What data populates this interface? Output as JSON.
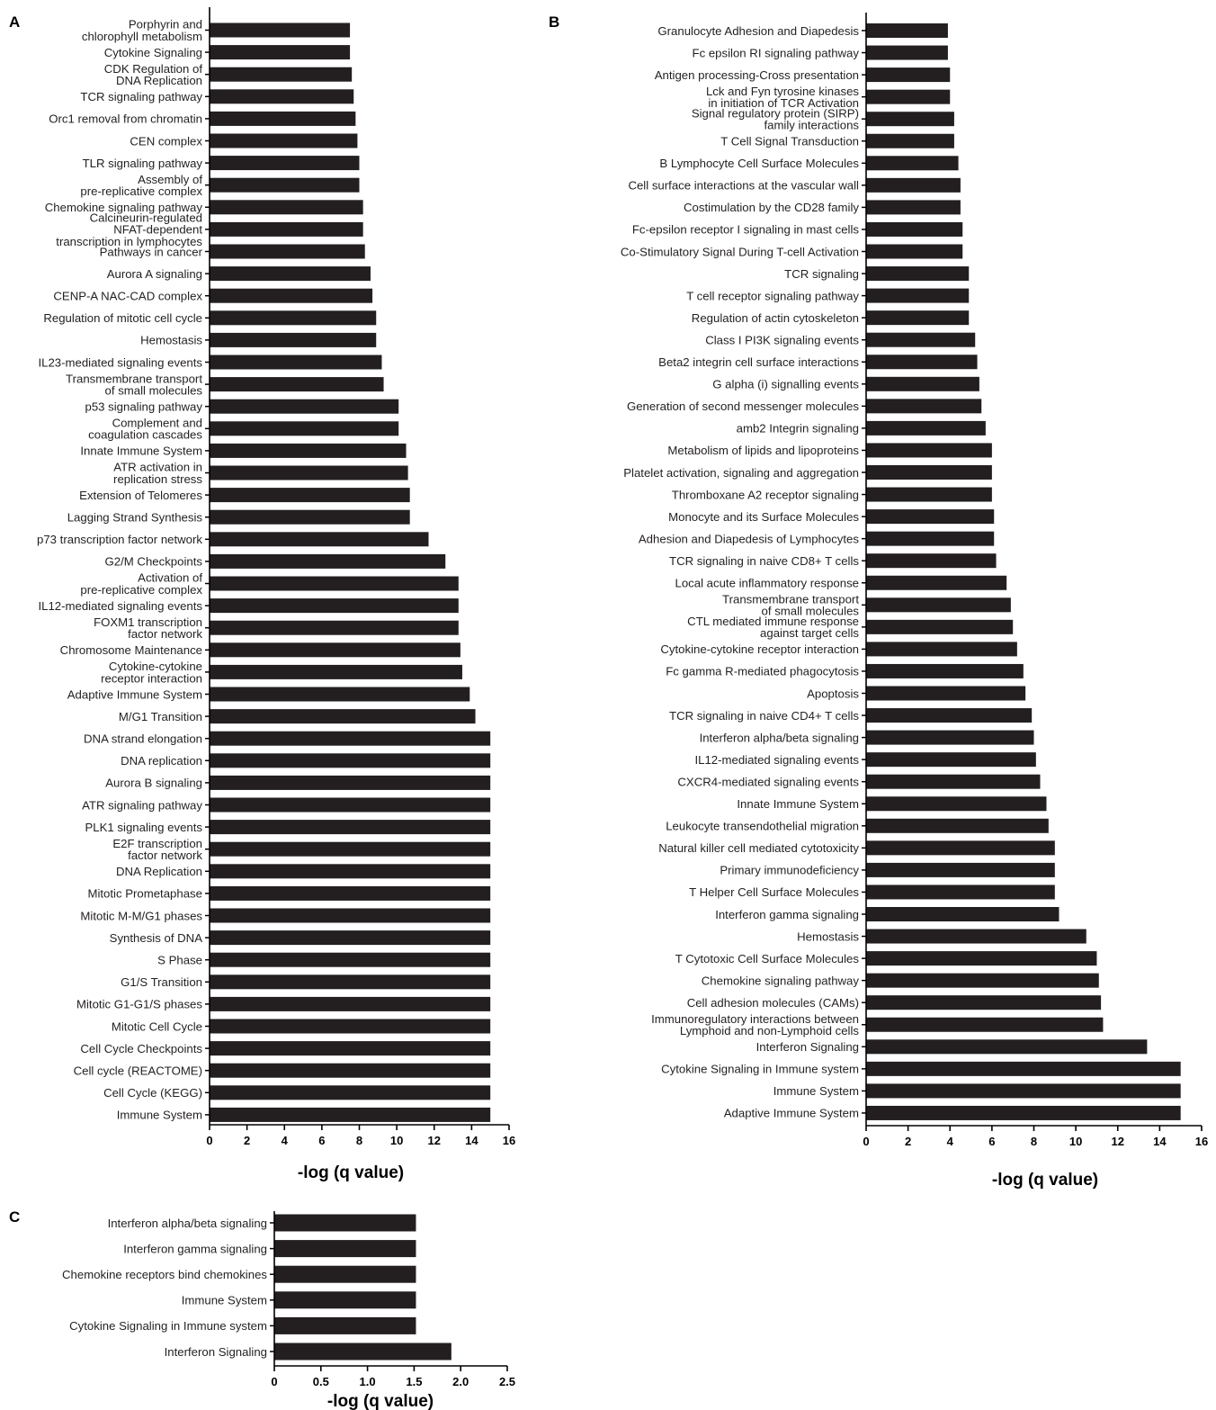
{
  "chart_data": [
    {
      "panel_label": "A",
      "type": "bar",
      "orientation": "horizontal",
      "xlabel": "-log (q value)",
      "xlim": [
        0,
        16
      ],
      "xticks": [
        "0",
        "2",
        "4",
        "6",
        "8",
        "10",
        "12",
        "14",
        "16"
      ],
      "bar_color": "#231f20",
      "categories": [
        "Porphyrin and\nchlorophyll metabolism",
        "Cytokine Signaling",
        "CDK Regulation of\nDNA Replication",
        "TCR  signaling pathway",
        "Orc1 removal from chromatin",
        "CEN complex",
        "TLR signaling pathway",
        "Assembly of\npre-replicative complex",
        "Chemokine signaling pathway",
        "Calcineurin-regulated\nNFAT-dependent\ntranscription in lymphocytes",
        "Pathways in cancer",
        "Aurora A signaling",
        "CENP-A NAC-CAD complex",
        "Regulation of mitotic cell cycle",
        "Hemostasis",
        "IL23-mediated signaling events",
        "Transmembrane transport\nof small molecules",
        "p53 signaling pathway",
        "Complement and\ncoagulation cascades",
        "Innate Immune System",
        "ATR activation in\nreplication stress",
        "Extension of Telomeres",
        "Lagging Strand Synthesis",
        "p73 transcription factor network",
        "G2/M Checkpoints",
        "Activation of\npre-replicative complex",
        "IL12-mediated signaling events",
        "FOXM1 transcription\nfactor network",
        "Chromosome Maintenance",
        "Cytokine-cytokine\nreceptor interaction",
        "Adaptive Immune System",
        "M/G1 Transition",
        "DNA strand elongation",
        "DNA replication",
        "Aurora B signaling",
        "ATR signaling pathway",
        "PLK1 signaling events",
        "E2F transcription\nfactor network",
        "DNA Replication",
        "Mitotic Prometaphase",
        "Mitotic M-M/G1 phases",
        "Synthesis of DNA",
        "S Phase",
        "G1/S Transition",
        "Mitotic G1-G1/S phases",
        "Mitotic Cell Cycle",
        "Cell Cycle Checkpoints",
        "Cell cycle (REACTOME)",
        "Cell Cycle (KEGG)",
        "Immune System"
      ],
      "values": [
        7.5,
        7.5,
        7.6,
        7.7,
        7.8,
        7.9,
        8.0,
        8.0,
        8.2,
        8.2,
        8.3,
        8.6,
        8.7,
        8.9,
        8.9,
        9.2,
        9.3,
        10.1,
        10.1,
        10.5,
        10.6,
        10.7,
        10.7,
        11.7,
        12.6,
        13.3,
        13.3,
        13.3,
        13.4,
        13.5,
        13.9,
        14.2,
        15.0,
        15.0,
        15.0,
        15.0,
        15.0,
        15.0,
        15.0,
        15.0,
        15.0,
        15.0,
        15.0,
        15.0,
        15.0,
        15.0,
        15.0,
        15.0,
        15.0,
        15.0
      ]
    },
    {
      "panel_label": "B",
      "type": "bar",
      "orientation": "horizontal",
      "xlabel": "-log (q value)",
      "xlim": [
        0,
        16
      ],
      "xticks": [
        "0",
        "2",
        "4",
        "6",
        "8",
        "10",
        "12",
        "14",
        "16"
      ],
      "bar_color": "#231f20",
      "categories": [
        "Granulocyte Adhesion and Diapedesis",
        "Fc epsilon RI signaling pathway",
        "Antigen processing-Cross presentation",
        "Lck and Fyn tyrosine kinases\nin initiation of TCR Activation",
        "Signal regulatory protein (SIRP)\nfamily interactions",
        "T Cell Signal Transduction",
        "B Lymphocyte Cell Surface Molecules",
        "Cell surface interactions at the vascular wall",
        "Costimulation by the CD28 family",
        "Fc-epsilon receptor I signaling in mast cells",
        "Co-Stimulatory Signal During T-cell Activation",
        "TCR signaling",
        "T cell receptor signaling pathway",
        "Regulation of actin cytoskeleton",
        "Class I PI3K signaling events",
        "Beta2 integrin cell surface interactions",
        "G alpha (i) signalling events",
        "Generation of second messenger molecules",
        "amb2 Integrin signaling",
        "Metabolism of lipids and lipoproteins",
        "Platelet activation, signaling and aggregation",
        "Thromboxane A2 receptor signaling",
        "Monocyte and its Surface Molecules",
        "Adhesion and Diapedesis of Lymphocytes",
        "TCR signaling in naive CD8+ T cells",
        "Local acute inflammatory response",
        "Transmembrane transport\nof small molecules",
        "CTL mediated immune response\nagainst target cells",
        "Cytokine-cytokine receptor interaction",
        "Fc gamma R-mediated phagocytosis",
        "Apoptosis",
        "TCR signaling in naive CD4+ T cells",
        "Interferon alpha/beta signaling",
        "IL12-mediated signaling events",
        "CXCR4-mediated signaling events",
        "Innate Immune System",
        "Leukocyte transendothelial migration",
        "Natural killer cell mediated cytotoxicity",
        "Primary immunodeficiency",
        "T Helper Cell Surface Molecules",
        "Interferon gamma signaling",
        "Hemostasis",
        "T Cytotoxic Cell Surface Molecules",
        "Chemokine signaling pathway",
        "Cell adhesion molecules (CAMs)",
        "Immunoregulatory interactions between\nLymphoid and non-Lymphoid cells",
        "Interferon Signaling",
        "Cytokine Signaling in Immune system",
        "Immune System",
        "Adaptive Immune System"
      ],
      "values": [
        3.9,
        3.9,
        4.0,
        4.0,
        4.2,
        4.2,
        4.4,
        4.5,
        4.5,
        4.6,
        4.6,
        4.9,
        4.9,
        4.9,
        5.2,
        5.3,
        5.4,
        5.5,
        5.7,
        6.0,
        6.0,
        6.0,
        6.1,
        6.1,
        6.2,
        6.7,
        6.9,
        7.0,
        7.2,
        7.5,
        7.6,
        7.9,
        8.0,
        8.1,
        8.3,
        8.6,
        8.7,
        9.0,
        9.0,
        9.0,
        9.2,
        10.5,
        11.0,
        11.1,
        11.2,
        11.3,
        13.4,
        15.0,
        15.0,
        15.0
      ]
    },
    {
      "panel_label": "C",
      "type": "bar",
      "orientation": "horizontal",
      "xlabel": "-log (q value)",
      "xlim": [
        0,
        2.5
      ],
      "xticks": [
        "0",
        "0.5",
        "1.0",
        "1.5",
        "2.0",
        "2.5"
      ],
      "bar_color": "#231f20",
      "categories": [
        "Interferon alpha/beta signaling",
        "Interferon gamma signaling",
        "Chemokine receptors bind chemokines",
        "Immune System",
        "Cytokine Signaling in Immune system",
        "Interferon Signaling"
      ],
      "values": [
        1.52,
        1.52,
        1.52,
        1.52,
        1.52,
        1.9
      ]
    }
  ]
}
